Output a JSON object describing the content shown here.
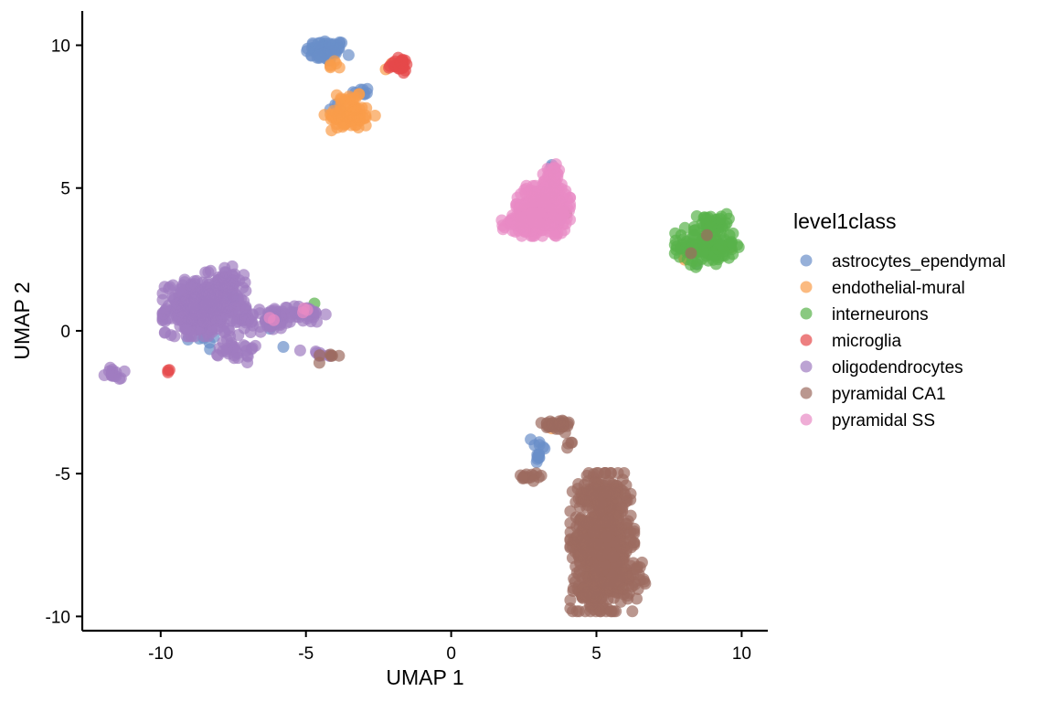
{
  "chart_data": {
    "type": "scatter",
    "xlabel": "UMAP 1",
    "ylabel": "UMAP 2",
    "xlim": [
      -12.7,
      10.9
    ],
    "ylim": [
      -10.5,
      11.2
    ],
    "xticks": [
      -10,
      -5,
      0,
      5,
      10
    ],
    "yticks": [
      -10,
      -5,
      0,
      5,
      10
    ],
    "xtick_labels": [
      "-10",
      "-5",
      "0",
      "5",
      "10"
    ],
    "ytick_labels": [
      "-10",
      "-5",
      "0",
      "5",
      "10"
    ],
    "grid": false,
    "legend_title": "level1class",
    "legend_position": "right",
    "series": [
      {
        "name": "astrocytes_ependymal",
        "color": "#6a8fc9",
        "clusters": [
          {
            "cx": -4.3,
            "cy": 9.8,
            "sx": 0.35,
            "sy": 0.2,
            "n": 70
          },
          {
            "cx": -3.1,
            "cy": 8.4,
            "sx": 0.15,
            "sy": 0.1,
            "n": 8
          },
          {
            "cx": -4.0,
            "cy": 7.8,
            "sx": 0.15,
            "sy": 0.1,
            "n": 5
          },
          {
            "cx": 3.0,
            "cy": -4.2,
            "sx": 0.12,
            "sy": 0.35,
            "n": 14
          },
          {
            "cx": -8.4,
            "cy": -0.4,
            "sx": 0.3,
            "sy": 0.2,
            "n": 6
          },
          {
            "cx": -7.6,
            "cy": 1.2,
            "sx": 0.1,
            "sy": 0.1,
            "n": 3
          },
          {
            "cx": 8.8,
            "cy": 3.8,
            "sx": 0.05,
            "sy": 0.05,
            "n": 1
          },
          {
            "cx": 8.4,
            "cy": 2.3,
            "sx": 0.05,
            "sy": 0.05,
            "n": 1
          },
          {
            "cx": 3.5,
            "cy": 5.8,
            "sx": 0.05,
            "sy": 0.05,
            "n": 2
          },
          {
            "cx": 3.7,
            "cy": 3.9,
            "sx": 0.05,
            "sy": 0.05,
            "n": 2
          },
          {
            "cx": -5.8,
            "cy": -0.6,
            "sx": 0.05,
            "sy": 0.05,
            "n": 1
          },
          {
            "cx": -6.2,
            "cy": 0.1,
            "sx": 0.05,
            "sy": 0.05,
            "n": 1
          }
        ]
      },
      {
        "name": "endothelial-mural",
        "color": "#f99d4a",
        "clusters": [
          {
            "cx": -3.5,
            "cy": 7.5,
            "sx": 0.4,
            "sy": 0.22,
            "n": 70
          },
          {
            "cx": -3.5,
            "cy": 8.1,
            "sx": 0.2,
            "sy": 0.15,
            "n": 15
          },
          {
            "cx": -4.0,
            "cy": 9.3,
            "sx": 0.2,
            "sy": 0.1,
            "n": 6
          },
          {
            "cx": -2.1,
            "cy": 9.2,
            "sx": 0.1,
            "sy": 0.1,
            "n": 3
          },
          {
            "cx": 2.3,
            "cy": 4.0,
            "sx": 0.1,
            "sy": 0.1,
            "n": 3
          },
          {
            "cx": 2.7,
            "cy": 4.2,
            "sx": 0.1,
            "sy": 0.1,
            "n": 2
          },
          {
            "cx": 3.4,
            "cy": -3.4,
            "sx": 0.05,
            "sy": 0.05,
            "n": 1
          },
          {
            "cx": 8.2,
            "cy": 2.6,
            "sx": 0.1,
            "sy": 0.05,
            "n": 2
          },
          {
            "cx": 9.7,
            "cy": 2.9,
            "sx": 0.05,
            "sy": 0.05,
            "n": 1
          }
        ]
      },
      {
        "name": "interneurons",
        "color": "#58b24a",
        "clusters": [
          {
            "cx": 8.8,
            "cy": 3.0,
            "sx": 0.5,
            "sy": 0.35,
            "n": 130
          },
          {
            "cx": 8.9,
            "cy": 3.8,
            "sx": 0.3,
            "sy": 0.15,
            "n": 25
          },
          {
            "cx": -4.8,
            "cy": 1.0,
            "sx": 0.05,
            "sy": 0.05,
            "n": 1
          }
        ]
      },
      {
        "name": "microglia",
        "color": "#e5484a",
        "clusters": [
          {
            "cx": -1.8,
            "cy": 9.3,
            "sx": 0.18,
            "sy": 0.12,
            "n": 30
          },
          {
            "cx": -9.7,
            "cy": -1.4,
            "sx": 0.05,
            "sy": 0.05,
            "n": 3
          },
          {
            "cx": 2.6,
            "cy": 4.2,
            "sx": 0.05,
            "sy": 0.05,
            "n": 1
          }
        ]
      },
      {
        "name": "oligodendrocytes",
        "color": "#a07cc1",
        "clusters": [
          {
            "cx": -8.5,
            "cy": 0.8,
            "sx": 0.65,
            "sy": 0.45,
            "n": 420
          },
          {
            "cx": -7.8,
            "cy": 1.8,
            "sx": 0.3,
            "sy": 0.25,
            "n": 45
          },
          {
            "cx": -7.4,
            "cy": -0.6,
            "sx": 0.3,
            "sy": 0.25,
            "n": 30
          },
          {
            "cx": -6.2,
            "cy": 0.4,
            "sx": 0.5,
            "sy": 0.2,
            "n": 60
          },
          {
            "cx": -5.2,
            "cy": 0.6,
            "sx": 0.4,
            "sy": 0.15,
            "n": 40
          },
          {
            "cx": -11.5,
            "cy": -1.5,
            "sx": 0.2,
            "sy": 0.1,
            "n": 14
          },
          {
            "cx": -4.6,
            "cy": -0.8,
            "sx": 0.3,
            "sy": 0.1,
            "n": 8
          }
        ]
      },
      {
        "name": "pyramidal CA1",
        "color": "#9c6b60",
        "clusters": [
          {
            "cx": 5.2,
            "cy": -7.4,
            "sx": 0.5,
            "sy": 1.1,
            "n": 650
          },
          {
            "cx": 5.8,
            "cy": -8.5,
            "sx": 0.4,
            "sy": 0.4,
            "n": 90
          },
          {
            "cx": 4.6,
            "cy": -9.2,
            "sx": 0.2,
            "sy": 0.1,
            "n": 25
          },
          {
            "cx": 5.1,
            "cy": -5.6,
            "sx": 0.4,
            "sy": 0.2,
            "n": 50
          },
          {
            "cx": 3.6,
            "cy": -3.3,
            "sx": 0.25,
            "sy": 0.12,
            "n": 35
          },
          {
            "cx": 2.9,
            "cy": -5.1,
            "sx": 0.25,
            "sy": 0.08,
            "n": 14
          },
          {
            "cx": 4.1,
            "cy": -4.0,
            "sx": 0.08,
            "sy": 0.1,
            "n": 4
          },
          {
            "cx": -4.3,
            "cy": -0.9,
            "sx": 0.2,
            "sy": 0.1,
            "n": 6
          },
          {
            "cx": 4.0,
            "cy": 4.1,
            "sx": 0.05,
            "sy": 0.05,
            "n": 2
          },
          {
            "cx": 8.9,
            "cy": 3.4,
            "sx": 0.05,
            "sy": 0.05,
            "n": 1
          },
          {
            "cx": 8.3,
            "cy": 2.7,
            "sx": 0.05,
            "sy": 0.05,
            "n": 1
          }
        ]
      },
      {
        "name": "pyramidal SS",
        "color": "#e88ac5",
        "clusters": [
          {
            "cx": 3.1,
            "cy": 4.2,
            "sx": 0.45,
            "sy": 0.4,
            "n": 330
          },
          {
            "cx": 3.5,
            "cy": 5.2,
            "sx": 0.2,
            "sy": 0.35,
            "n": 60
          },
          {
            "cx": 2.4,
            "cy": 3.8,
            "sx": 0.3,
            "sy": 0.15,
            "n": 40
          },
          {
            "cx": -5.0,
            "cy": 0.7,
            "sx": 0.1,
            "sy": 0.05,
            "n": 3
          },
          {
            "cx": -6.3,
            "cy": 0.4,
            "sx": 0.1,
            "sy": 0.05,
            "n": 2
          }
        ]
      }
    ]
  }
}
